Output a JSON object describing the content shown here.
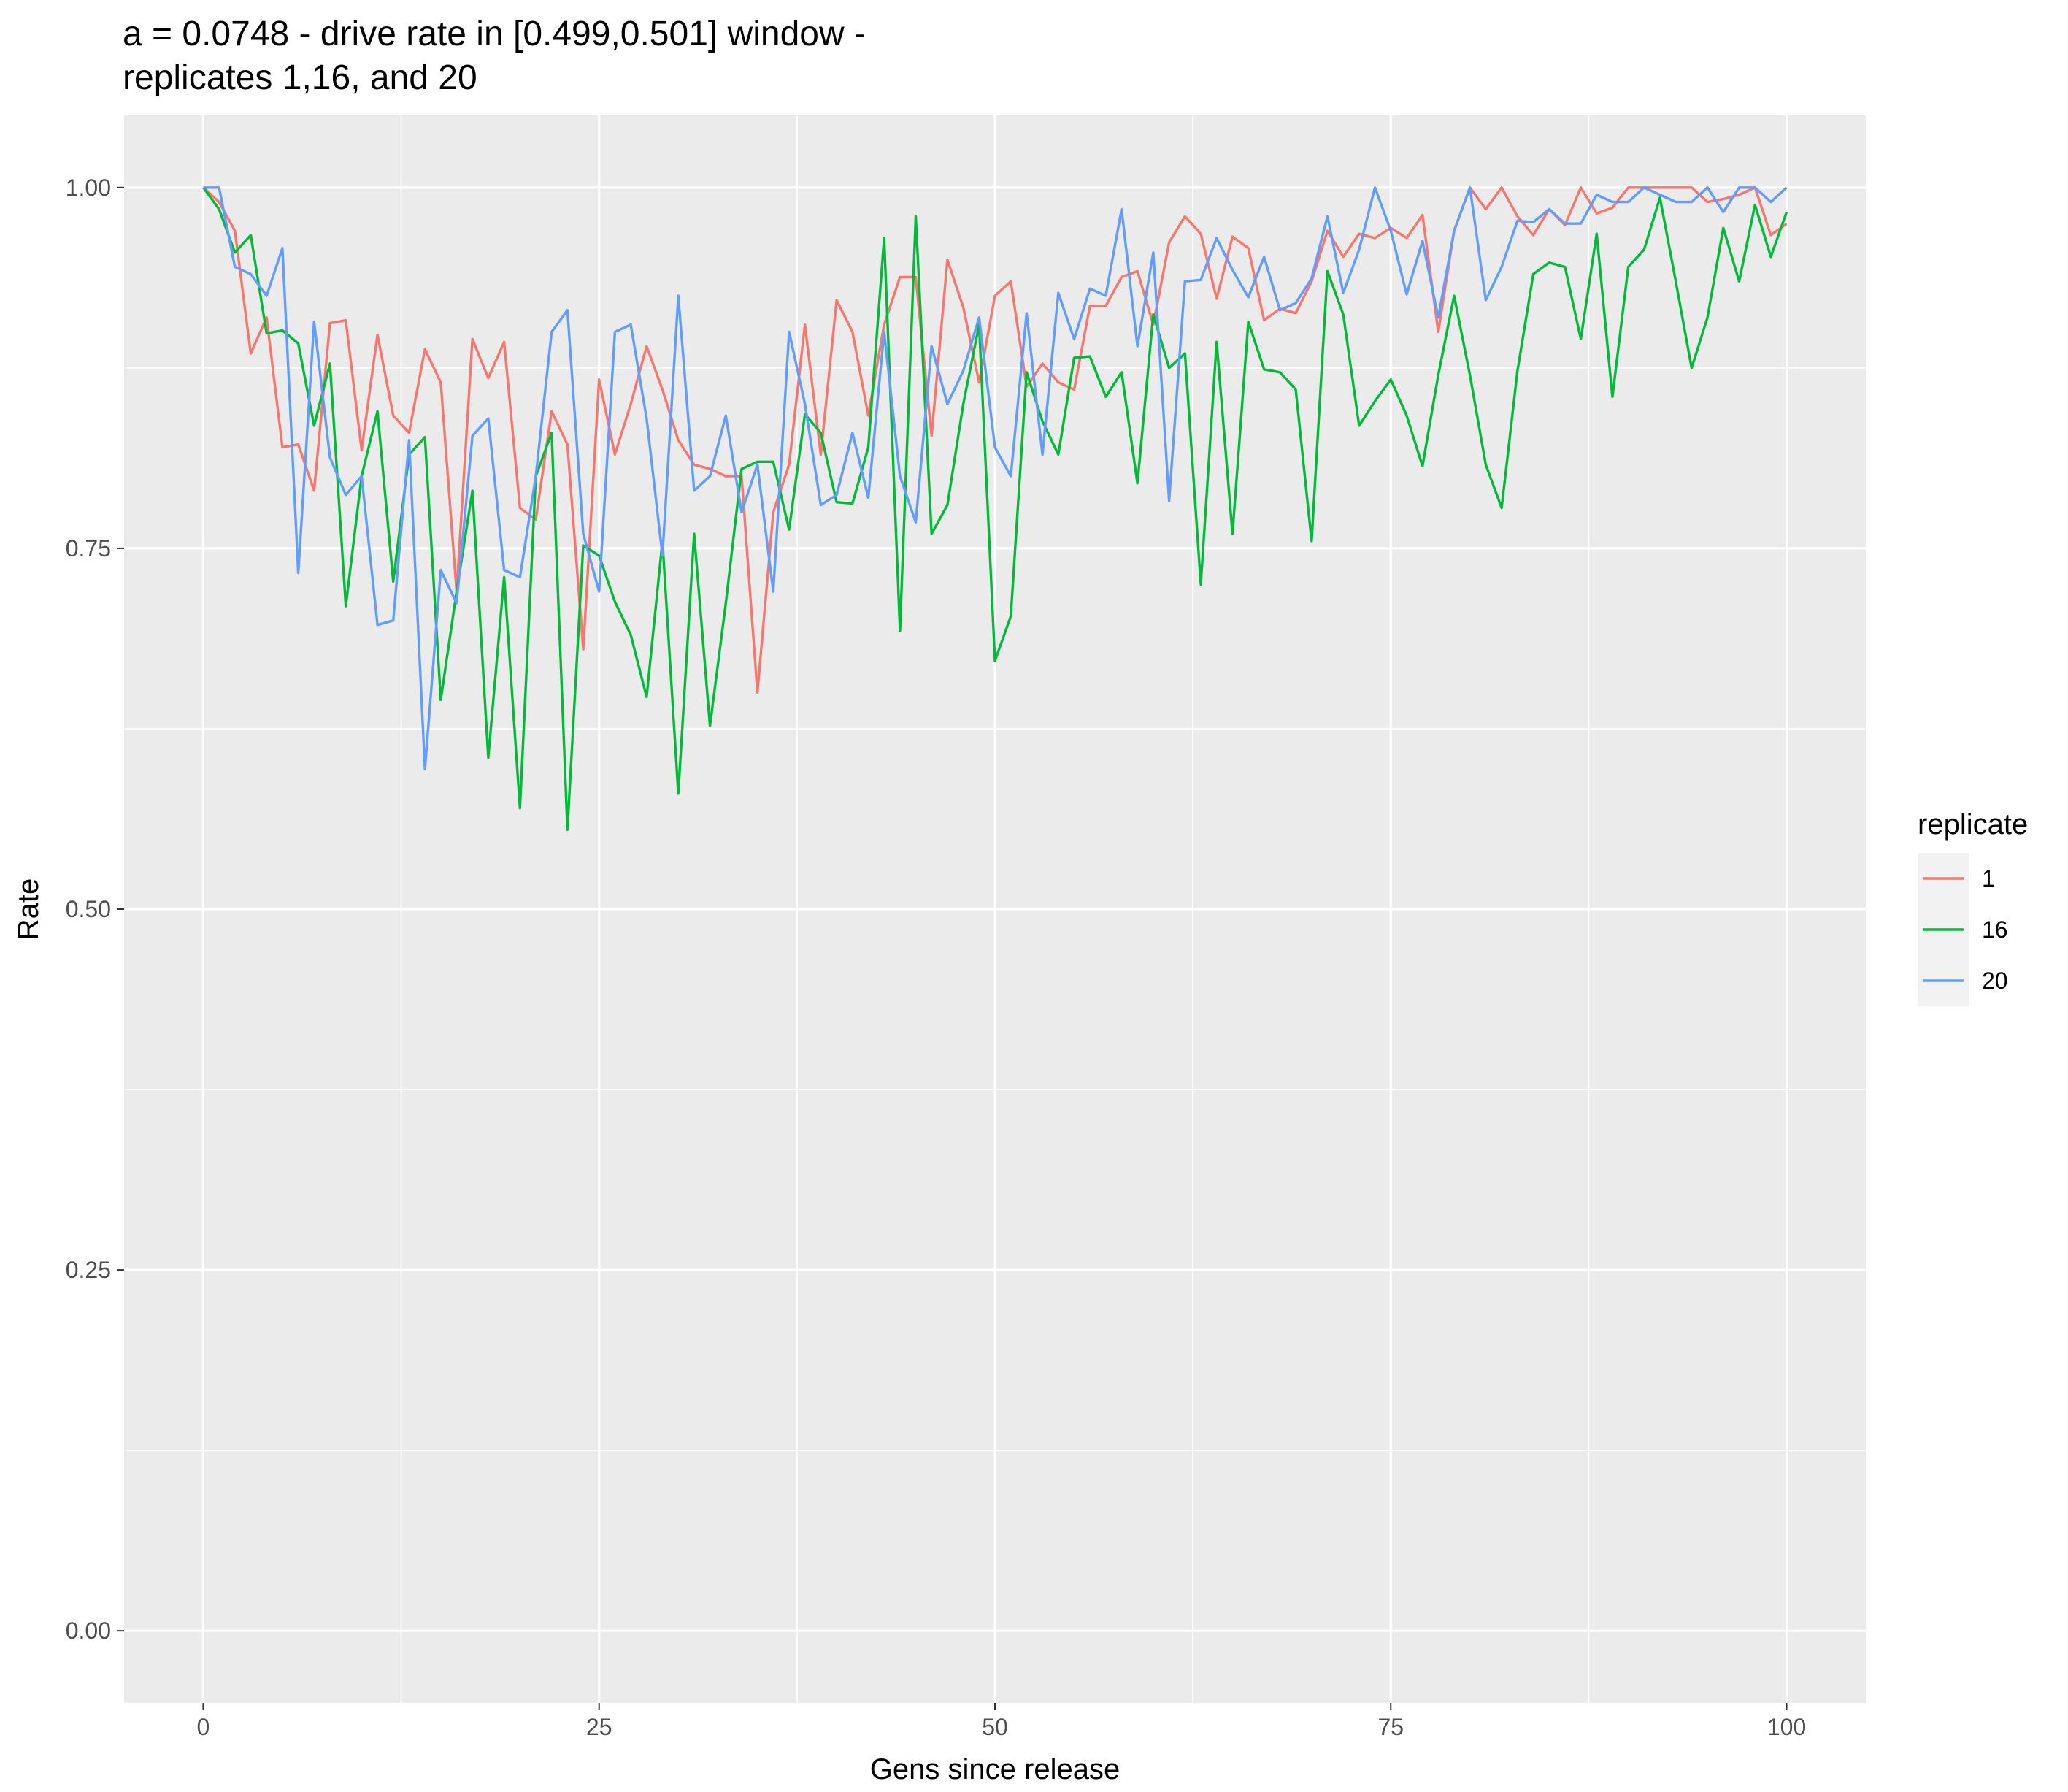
{
  "chart_data": {
    "type": "line",
    "title_line1": "a = 0.0748 - drive rate in [0.499,0.501] window -",
    "title_line2": "replicates 1,16, and 20",
    "xlabel": "Gens since release",
    "ylabel": "Rate",
    "xlim": [
      -5,
      105
    ],
    "ylim": [
      -0.05,
      1.05
    ],
    "x_ticks": [
      0,
      25,
      50,
      75,
      100
    ],
    "x_tick_labels": [
      "0",
      "25",
      "50",
      "75",
      "100"
    ],
    "y_ticks": [
      0,
      0.25,
      0.5,
      0.75,
      1.0
    ],
    "y_tick_labels": [
      "0.00",
      "0.25",
      "0.50",
      "0.75",
      "1.00"
    ],
    "grid": true,
    "legend_title": "replicate",
    "legend_position": "right",
    "series": [
      {
        "name": "1",
        "color": "#F8766D",
        "values": [
          1.0,
          0.99,
          0.97,
          0.885,
          0.91,
          0.82,
          0.822,
          0.79,
          0.906,
          0.908,
          0.818,
          0.898,
          0.842,
          0.83,
          0.888,
          0.865,
          0.72,
          0.895,
          0.868,
          0.893,
          0.778,
          0.77,
          0.845,
          0.822,
          0.68,
          0.867,
          0.815,
          0.85,
          0.89,
          0.86,
          0.825,
          0.808,
          0.805,
          0.8,
          0.8,
          0.65,
          0.775,
          0.808,
          0.905,
          0.815,
          0.922,
          0.9,
          0.842,
          0.905,
          0.938,
          0.938,
          0.828,
          0.95,
          0.917,
          0.865,
          0.925,
          0.935,
          0.862,
          0.878,
          0.865,
          0.86,
          0.918,
          0.918,
          0.938,
          0.942,
          0.905,
          0.962,
          0.98,
          0.968,
          0.923,
          0.966,
          0.958,
          0.908,
          0.916,
          0.913,
          0.935,
          0.97,
          0.952,
          0.968,
          0.965,
          0.972,
          0.965,
          0.981,
          0.9,
          0.97,
          1.0,
          0.985,
          1.0,
          0.98,
          0.967,
          0.985,
          0.974,
          1.0,
          0.982,
          0.986,
          1.0,
          1.0,
          1.0,
          1.0,
          1.0,
          0.99,
          0.992,
          0.995,
          1.0,
          0.967,
          0.975
        ]
      },
      {
        "name": "16",
        "color": "#00BA38",
        "values": [
          1.0,
          0.985,
          0.955,
          0.967,
          0.899,
          0.901,
          0.892,
          0.835,
          0.878,
          0.71,
          0.8,
          0.845,
          0.727,
          0.815,
          0.827,
          0.645,
          0.72,
          0.79,
          0.605,
          0.73,
          0.57,
          0.8,
          0.83,
          0.555,
          0.752,
          0.745,
          0.713,
          0.69,
          0.647,
          0.755,
          0.58,
          0.76,
          0.627,
          0.712,
          0.805,
          0.81,
          0.81,
          0.763,
          0.843,
          0.83,
          0.782,
          0.781,
          0.82,
          0.965,
          0.693,
          0.98,
          0.76,
          0.78,
          0.85,
          0.905,
          0.672,
          0.703,
          0.872,
          0.838,
          0.815,
          0.882,
          0.883,
          0.855,
          0.872,
          0.795,
          0.912,
          0.875,
          0.885,
          0.725,
          0.893,
          0.76,
          0.907,
          0.874,
          0.872,
          0.86,
          0.755,
          0.942,
          0.912,
          0.835,
          0.852,
          0.867,
          0.842,
          0.807,
          0.87,
          0.925,
          0.87,
          0.808,
          0.778,
          0.873,
          0.94,
          0.948,
          0.945,
          0.895,
          0.968,
          0.855,
          0.945,
          0.957,
          0.993,
          0.935,
          0.875,
          0.91,
          0.972,
          0.935,
          0.988,
          0.952,
          0.983
        ]
      },
      {
        "name": "20",
        "color": "#619CFF",
        "values": [
          1.0,
          1.0,
          0.945,
          0.94,
          0.925,
          0.958,
          0.733,
          0.907,
          0.813,
          0.787,
          0.8,
          0.697,
          0.7,
          0.825,
          0.597,
          0.735,
          0.712,
          0.828,
          0.84,
          0.735,
          0.73,
          0.8,
          0.9,
          0.915,
          0.76,
          0.72,
          0.9,
          0.905,
          0.84,
          0.745,
          0.925,
          0.79,
          0.8,
          0.842,
          0.775,
          0.808,
          0.72,
          0.9,
          0.85,
          0.78,
          0.787,
          0.83,
          0.785,
          0.9,
          0.8,
          0.768,
          0.89,
          0.85,
          0.873,
          0.91,
          0.82,
          0.8,
          0.913,
          0.815,
          0.927,
          0.895,
          0.93,
          0.925,
          0.985,
          0.89,
          0.955,
          0.783,
          0.935,
          0.936,
          0.965,
          0.943,
          0.924,
          0.952,
          0.915,
          0.92,
          0.937,
          0.98,
          0.927,
          0.957,
          1.0,
          0.97,
          0.926,
          0.963,
          0.91,
          0.97,
          1.0,
          0.922,
          0.945,
          0.977,
          0.976,
          0.985,
          0.975,
          0.975,
          0.995,
          0.99,
          0.99,
          1.0,
          0.995,
          0.99,
          0.99,
          1.0,
          0.983,
          1.0,
          1.0,
          0.99,
          1.0
        ]
      }
    ]
  }
}
